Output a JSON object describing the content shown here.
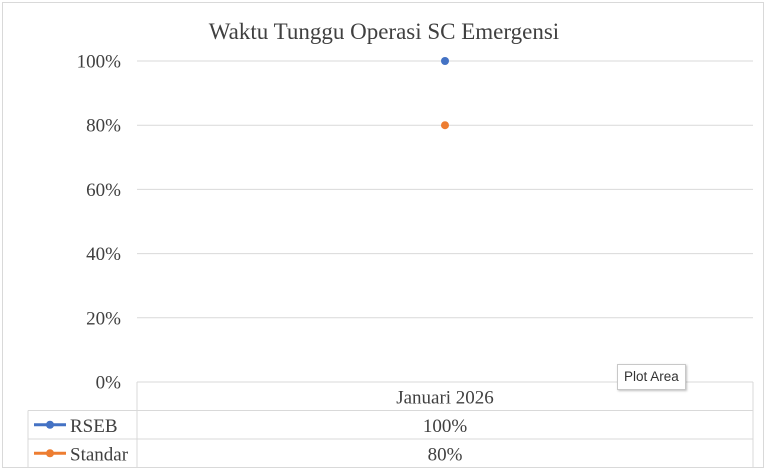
{
  "chart_data": {
    "type": "line",
    "title": "Waktu Tunggu Operasi SC Emergensi",
    "categories": [
      "Januari 2026"
    ],
    "series": [
      {
        "name": "RSEB",
        "values": [
          1.0
        ],
        "labels": [
          "100%"
        ],
        "color": "#4472c4"
      },
      {
        "name": "Standar",
        "values": [
          0.8
        ],
        "labels": [
          "80%"
        ],
        "color": "#ed7d31"
      }
    ],
    "ylim": [
      0,
      1
    ],
    "yticks": [
      {
        "value": 0,
        "label": "0%"
      },
      {
        "value": 0.2,
        "label": "20%"
      },
      {
        "value": 0.4,
        "label": "40%"
      },
      {
        "value": 0.6,
        "label": "60%"
      },
      {
        "value": 0.8,
        "label": "80%"
      },
      {
        "value": 1.0,
        "label": "100%"
      }
    ],
    "grid": true,
    "data_table": true,
    "gridline_color": "#d9d9d9"
  },
  "tooltip": {
    "text": "Plot Area"
  }
}
